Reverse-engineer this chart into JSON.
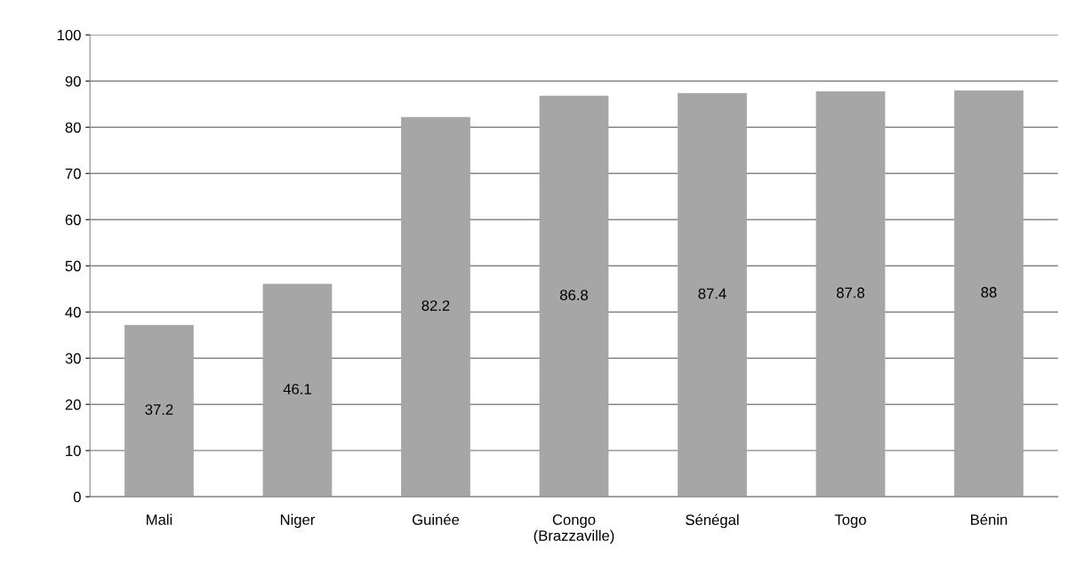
{
  "chart_data": {
    "type": "bar",
    "categories": [
      "Mali",
      "Niger",
      "Guinée",
      "Congo\n(Brazzaville)",
      "Sénégal",
      "Togo",
      "Bénin"
    ],
    "values": [
      37.2,
      46.1,
      82.2,
      86.8,
      87.4,
      87.8,
      88
    ],
    "color": "#a6a6a6",
    "ylim": [
      0,
      100
    ],
    "yticks": [
      0,
      10,
      20,
      30,
      40,
      50,
      60,
      70,
      80,
      90,
      100
    ],
    "grid": "y",
    "data_labels": true
  }
}
